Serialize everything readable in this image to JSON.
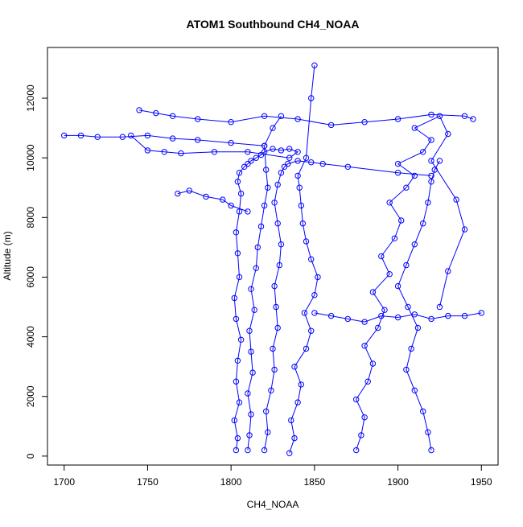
{
  "chart_data": {
    "type": "scatter",
    "title": "ATOM1 Southbound CH4_NOAA",
    "xlabel": "CH4_NOAA",
    "ylabel": "Altitude (m)",
    "xlim": [
      1690,
      1960
    ],
    "ylim": [
      -300,
      13700
    ],
    "x_ticks": [
      1700,
      1750,
      1800,
      1850,
      1900,
      1950
    ],
    "y_ticks": [
      0,
      2000,
      4000,
      6000,
      8000,
      10000,
      12000
    ],
    "style": "points-and-lines",
    "marker": "open-circle",
    "color": "#0000ff",
    "series": [
      {
        "x": [
          1803,
          1804,
          1802,
          1805,
          1803,
          1804,
          1806,
          1803,
          1802,
          1805,
          1804,
          1803,
          1805,
          1806,
          1804,
          1805,
          1808,
          1810,
          1812,
          1815,
          1818,
          1820,
          1825,
          1830,
          1835,
          1840,
          1835,
          1810,
          1790,
          1770,
          1760,
          1750,
          1740
        ],
        "y": [
          200,
          600,
          1200,
          1800,
          2500,
          3200,
          3900,
          4600,
          5300,
          6000,
          6800,
          7500,
          8200,
          8800,
          9200,
          9500,
          9700,
          9800,
          9900,
          10000,
          10100,
          10200,
          10300,
          10250,
          10300,
          10200,
          10000,
          10200,
          10200,
          10150,
          10200,
          10250,
          10750
        ]
      },
      {
        "x": [
          1810,
          1811,
          1812,
          1810,
          1813,
          1812,
          1811,
          1814,
          1812,
          1815,
          1816,
          1818,
          1820,
          1822,
          1821,
          1820,
          1825,
          1830
        ],
        "y": [
          200,
          700,
          1400,
          2100,
          2800,
          3500,
          4200,
          4900,
          5600,
          6300,
          7000,
          7700,
          8400,
          9000,
          9600,
          10400,
          11000,
          11400
        ]
      },
      {
        "x": [
          1820,
          1822,
          1821,
          1824,
          1826,
          1825,
          1828,
          1827,
          1826,
          1829,
          1830,
          1828,
          1826,
          1828,
          1830,
          1832,
          1834,
          1840,
          1848,
          1855,
          1870,
          1900,
          1920
        ],
        "y": [
          200,
          800,
          1500,
          2200,
          2900,
          3600,
          4300,
          5000,
          5700,
          6400,
          7100,
          7800,
          8500,
          9100,
          9500,
          9700,
          9800,
          9900,
          9850,
          9800,
          9700,
          9500,
          9400
        ]
      },
      {
        "x": [
          1835,
          1838,
          1836,
          1840,
          1842,
          1838,
          1845,
          1848,
          1844,
          1850,
          1852,
          1848,
          1845,
          1843,
          1842,
          1841,
          1840,
          1845,
          1848,
          1850
        ],
        "y": [
          100,
          600,
          1200,
          1800,
          2400,
          3000,
          3600,
          4200,
          4800,
          5400,
          6000,
          6600,
          7200,
          7800,
          8400,
          9000,
          9400,
          10000,
          12000,
          13100
        ]
      },
      {
        "x": [
          1875,
          1878,
          1880,
          1875,
          1882,
          1885,
          1880,
          1888,
          1892,
          1885,
          1895,
          1890,
          1898,
          1902,
          1895,
          1905,
          1910,
          1900,
          1915,
          1920,
          1910,
          1925,
          1930,
          1920,
          1935,
          1940,
          1930,
          1925
        ],
        "y": [
          200,
          700,
          1300,
          1900,
          2500,
          3100,
          3700,
          4300,
          4900,
          5500,
          6100,
          6700,
          7300,
          7900,
          8500,
          9000,
          9400,
          9800,
          10200,
          10600,
          11000,
          11400,
          10800,
          9900,
          8600,
          7600,
          6200,
          5000
        ]
      },
      {
        "x": [
          1920,
          1918,
          1915,
          1910,
          1905,
          1908,
          1912,
          1906,
          1900,
          1905,
          1910,
          1915,
          1918,
          1920,
          1922,
          1925
        ],
        "y": [
          200,
          800,
          1500,
          2200,
          2900,
          3600,
          4300,
          5000,
          5700,
          6400,
          7100,
          7800,
          8500,
          9200,
          9600,
          9900
        ]
      },
      {
        "x": [
          1700,
          1710,
          1720,
          1735,
          1750,
          1765,
          1780,
          1800,
          1820
        ],
        "y": [
          10750,
          10750,
          10700,
          10700,
          10750,
          10650,
          10600,
          10500,
          10400
        ]
      },
      {
        "x": [
          1745,
          1755,
          1765,
          1780,
          1800,
          1820,
          1840,
          1860,
          1880,
          1900,
          1920,
          1940,
          1945
        ],
        "y": [
          11600,
          11500,
          11400,
          11300,
          11200,
          11400,
          11300,
          11100,
          11200,
          11300,
          11450,
          11400,
          11300
        ]
      },
      {
        "x": [
          1768,
          1775,
          1785,
          1795,
          1800,
          1810
        ],
        "y": [
          8800,
          8900,
          8700,
          8600,
          8400,
          8200
        ]
      },
      {
        "x": [
          1850,
          1860,
          1870,
          1880,
          1890,
          1900,
          1910,
          1920,
          1930,
          1940,
          1950
        ],
        "y": [
          4800,
          4700,
          4600,
          4500,
          4700,
          4650,
          4750,
          4600,
          4700,
          4700,
          4800
        ]
      }
    ]
  }
}
